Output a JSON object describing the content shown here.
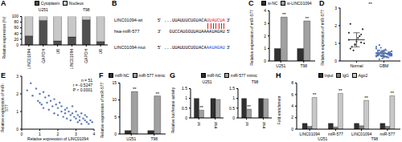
{
  "chart_data": [
    {
      "panel": "A",
      "type": "bar",
      "stacked": true,
      "y_label": "Relative expression (%)",
      "categories": [
        "LINC01094",
        "GAPDH",
        "U6",
        "LINC01094",
        "GAPDH",
        "U6"
      ],
      "groups": [
        "U251",
        "T98"
      ],
      "series": [
        {
          "name": "Cytoplasm",
          "color": "#505050",
          "values": [
            32,
            86,
            14,
            28,
            88,
            12
          ]
        },
        {
          "name": "Nucleus",
          "color": "#c8c8c8",
          "values": [
            68,
            14,
            86,
            72,
            12,
            88
          ]
        }
      ],
      "ylim": [
        0,
        100
      ],
      "yticks": [
        0,
        20,
        40,
        60,
        80,
        100
      ],
      "legend": "top"
    },
    {
      "panel": "C",
      "type": "bar",
      "y_label": "Relative expression of miR-577",
      "categories": [
        "U251",
        "T98"
      ],
      "series": [
        {
          "name": "si-NC",
          "color": "#303030",
          "values": [
            1,
            1
          ]
        },
        {
          "name": "si-LINC01094",
          "color": "#a0a0a0",
          "values": [
            3.5,
            3.2
          ],
          "annotations": [
            "**",
            "**"
          ]
        }
      ],
      "ylim": [
        0,
        4
      ],
      "yticks": [
        0,
        1,
        2,
        3,
        4
      ],
      "legend": "top"
    },
    {
      "panel": "D",
      "type": "strip",
      "y_label": "Relative expression of miR-577",
      "categories": [
        "Normal",
        "GBM"
      ],
      "colors": [
        "#303030",
        "#4a6fb5"
      ],
      "values": [
        [
          1.2,
          0.9,
          1.5,
          0.7,
          1.1,
          1.8,
          0.8,
          1.3,
          1.0,
          0.6,
          1.4,
          1.6,
          0.95,
          1.05,
          2.1
        ],
        [
          0.3,
          0.5,
          0.2,
          0.4,
          0.6,
          0.35,
          0.45,
          0.25,
          0.55,
          0.3,
          0.4,
          0.7,
          0.15,
          0.5,
          0.35,
          0.45,
          0.3,
          0.6,
          0.25,
          0.4,
          0.5,
          0.2,
          0.8,
          0.35,
          0.45,
          0.3,
          0.55,
          0.4,
          0.1,
          0.65,
          0.35,
          0.5,
          0.25,
          0.45,
          0.3,
          0.4,
          0.6,
          0.2,
          0.5,
          0.35,
          0.45,
          0.3,
          0.75,
          0.4,
          0.25,
          0.55,
          0.35,
          0.5,
          0.3,
          0.4,
          0.9
        ]
      ],
      "mean": [
        1.2,
        0.42
      ],
      "sd": [
        0.4,
        0.17
      ],
      "ylim": [
        0,
        3
      ],
      "yticks": [
        0,
        1,
        2,
        3
      ],
      "annotation": "**"
    },
    {
      "panel": "E",
      "type": "scatter",
      "x_label": "Relative expression of LINC01094",
      "y_label": "Relative expression of miR-577",
      "color": "#5b7bb8",
      "x": [
        0.3,
        0.5,
        0.6,
        0.8,
        0.9,
        1.0,
        1.1,
        1.2,
        1.2,
        1.3,
        1.4,
        1.5,
        1.5,
        1.6,
        1.7,
        1.8,
        1.8,
        1.9,
        2.0,
        2.0,
        2.1,
        2.2,
        2.2,
        2.3,
        2.4,
        2.4,
        2.5,
        2.5,
        2.6,
        2.7,
        2.7,
        2.8,
        2.8,
        2.9,
        3.0,
        3.0,
        3.1,
        3.1,
        3.2,
        3.2,
        3.3,
        3.3,
        3.4,
        3.5,
        3.5,
        3.6,
        3.6,
        3.7,
        3.8,
        3.9,
        1.0
      ],
      "y": [
        2.2,
        2.6,
        1.9,
        2.3,
        1.6,
        2.0,
        1.4,
        2.1,
        1.2,
        1.8,
        1.5,
        1.9,
        1.1,
        1.6,
        1.3,
        1.7,
        0.9,
        1.4,
        1.2,
        0.8,
        1.5,
        1.0,
        1.3,
        0.7,
        1.1,
        0.9,
        1.2,
        0.6,
        1.0,
        0.8,
        0.5,
        0.9,
        1.3,
        0.7,
        0.6,
        1.0,
        0.4,
        0.8,
        0.7,
        0.5,
        0.9,
        0.3,
        0.6,
        0.5,
        0.8,
        0.4,
        0.7,
        0.3,
        0.5,
        0.4,
        1.5
      ],
      "xlim": [
        0,
        4
      ],
      "xticks": [
        0,
        1,
        2,
        3,
        4
      ],
      "ylim": [
        0,
        3
      ],
      "yticks": [
        0,
        1,
        2,
        3
      ],
      "annotations": [
        "n = 51",
        "r = -0.5247",
        "P < 0.0001"
      ]
    },
    {
      "panel": "F",
      "type": "bar",
      "y_label": "Relative expression of miR-577",
      "categories": [
        "U251",
        "T98"
      ],
      "series": [
        {
          "name": "miR-NC",
          "color": "#303030",
          "values": [
            1,
            1
          ]
        },
        {
          "name": "miR-577 mimic",
          "color": "#a0a0a0",
          "values": [
            12.5,
            11.2
          ],
          "annotations": [
            "**",
            "**"
          ]
        }
      ],
      "ylim": [
        0,
        15
      ],
      "yticks": [
        0,
        5,
        10,
        15
      ],
      "legend": "top"
    },
    {
      "panel": "G",
      "type": "bar",
      "title": "U251",
      "y_label": "Relative luciferase activity",
      "categories": [
        "wt",
        "mut"
      ],
      "series": [
        {
          "name": "miR-NC",
          "color": "#303030",
          "values": [
            1,
            1
          ]
        },
        {
          "name": "miR-577 mimic",
          "color": "#a0a0a0",
          "values": [
            0.4,
            0.95
          ],
          "annotations": [
            "**",
            null
          ]
        }
      ],
      "ylim": [
        0,
        1.5
      ],
      "yticks": [
        0,
        0.5,
        1,
        1.5
      ],
      "legend": "top"
    },
    {
      "type": "bar",
      "title": "T98",
      "categories": [
        "wt",
        "mut"
      ],
      "series": [
        {
          "name": "miR-NC",
          "color": "#303030",
          "values": [
            1,
            1
          ]
        },
        {
          "name": "miR-577 mimic",
          "color": "#a0a0a0",
          "values": [
            0.45,
            0.98
          ],
          "annotations": [
            "**",
            null
          ]
        }
      ],
      "ylim": [
        0,
        1.5
      ],
      "yticks": [
        0,
        0.5,
        1,
        1.5
      ]
    },
    {
      "panel": "H",
      "type": "bar",
      "y_label": "Fold enrichment",
      "categories": [
        "LINC01094",
        "miR-577",
        "LINC01094",
        "miR-577"
      ],
      "groups": [
        "U251",
        "T98"
      ],
      "series": [
        {
          "name": "Input",
          "color": "#303030",
          "values": [
            1,
            1,
            1,
            1
          ]
        },
        {
          "name": "IgG",
          "color": "#808080",
          "values": [
            0.5,
            0.4,
            0.6,
            0.5
          ]
        },
        {
          "name": "Ago2",
          "color": "#c8c8c8",
          "values": [
            5.5,
            6.2,
            5.0,
            5.8
          ],
          "annotations": [
            "**",
            "**",
            "**",
            "**"
          ]
        }
      ],
      "ylim": [
        0,
        8
      ],
      "yticks": [
        0,
        2,
        4,
        6,
        8
      ],
      "legend": "top"
    }
  ],
  "diagram": {
    "panel": "B",
    "rows": [
      {
        "name": "LINC01094-wt",
        "start": "5'",
        "sequence": "...UUAUUUCUGUACA",
        "site": "UUAUCUA",
        "end": "3'",
        "color": "#e02020"
      },
      {
        "name": "hsa-miR-577",
        "start": "3'",
        "sequence": "GUCCAUGGUUAUAAAAUAGAU",
        "end": "5'"
      },
      {
        "name": "LINC01094-mut",
        "start": "5'",
        "sequence": "...UUAUUUCUGUACA",
        "site": "AAUAGAU",
        "end": "3'",
        "color": "#2040d0"
      }
    ]
  }
}
